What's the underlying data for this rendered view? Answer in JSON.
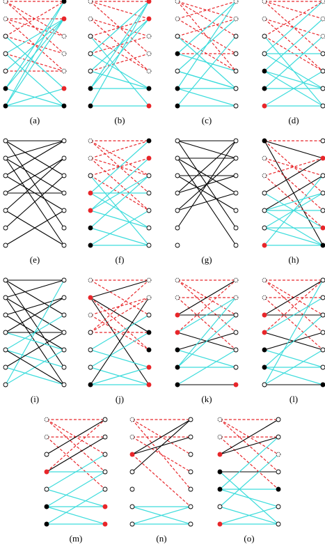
{
  "subfigures": [
    {
      "label": "(a)"
    },
    {
      "label": "(b)"
    },
    {
      "label": "(c)"
    },
    {
      "label": "(d)"
    },
    {
      "label": "(e)"
    },
    {
      "label": "(f)"
    },
    {
      "label": "(g)"
    },
    {
      "label": "(h)"
    },
    {
      "label": "(i)"
    },
    {
      "label": "(j)"
    },
    {
      "label": "(k)"
    },
    {
      "label": "(l)"
    },
    {
      "label": "(m)"
    },
    {
      "label": "(n)"
    },
    {
      "label": "(o)"
    }
  ]
}
